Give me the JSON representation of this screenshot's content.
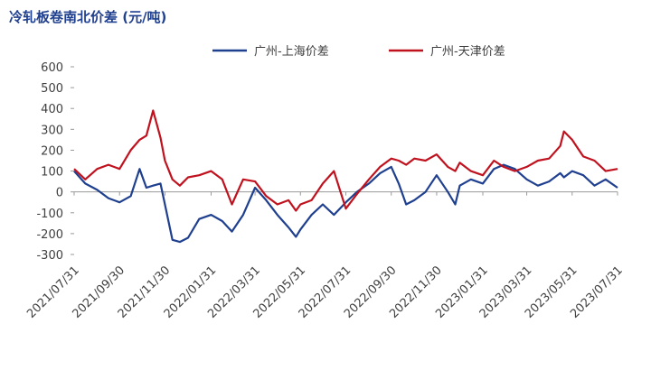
{
  "chart_data": {
    "type": "line",
    "title": "冷轧板卷南北价差 (元/吨)",
    "x": [
      "2021/07/31",
      "2021/08/15",
      "2021/08/31",
      "2021/09/15",
      "2021/09/30",
      "2021/10/15",
      "2021/10/27",
      "2021/11/05",
      "2021/11/14",
      "2021/11/24",
      "2021/11/30",
      "2021/12/10",
      "2021/12/20",
      "2021/12/31",
      "2022/01/15",
      "2022/01/31",
      "2022/02/15",
      "2022/02/28",
      "2022/03/15",
      "2022/03/31",
      "2022/04/15",
      "2022/04/30",
      "2022/05/15",
      "2022/05/25",
      "2022/05/31",
      "2022/06/15",
      "2022/06/30",
      "2022/07/15",
      "2022/07/31",
      "2022/08/15",
      "2022/08/31",
      "2022/09/15",
      "2022/09/30",
      "2022/10/10",
      "2022/10/20",
      "2022/10/31",
      "2022/11/15",
      "2022/11/30",
      "2022/12/15",
      "2022/12/25",
      "2022/12/31",
      "2023/01/15",
      "2023/01/31",
      "2023/02/15",
      "2023/02/28",
      "2023/03/15",
      "2023/03/31",
      "2023/04/15",
      "2023/04/30",
      "2023/05/15",
      "2023/05/20",
      "2023/05/31",
      "2023/06/15",
      "2023/06/30",
      "2023/07/15",
      "2023/07/31"
    ],
    "series": [
      {
        "name": "广州-上海价差",
        "color": "#1f3f8f",
        "values": [
          100,
          40,
          10,
          -30,
          -50,
          -20,
          110,
          20,
          30,
          40,
          -60,
          -230,
          -240,
          -220,
          -130,
          -110,
          -140,
          -190,
          -110,
          20,
          -40,
          -110,
          -170,
          -215,
          -180,
          -110,
          -60,
          -110,
          -50,
          0,
          40,
          90,
          120,
          40,
          -60,
          -40,
          0,
          80,
          0,
          -60,
          30,
          60,
          40,
          110,
          130,
          110,
          60,
          30,
          50,
          90,
          70,
          100,
          80,
          30,
          60,
          20
        ]
      },
      {
        "name": "广州-天津价差",
        "color": "#c0121e",
        "values": [
          110,
          60,
          110,
          130,
          110,
          200,
          250,
          270,
          390,
          260,
          150,
          60,
          30,
          70,
          80,
          100,
          60,
          -60,
          60,
          50,
          -20,
          -60,
          -40,
          -90,
          -60,
          -40,
          40,
          100,
          -80,
          -10,
          60,
          120,
          160,
          150,
          130,
          160,
          150,
          180,
          120,
          100,
          140,
          100,
          80,
          150,
          120,
          100,
          120,
          150,
          160,
          220,
          290,
          250,
          170,
          150,
          100,
          110
        ]
      }
    ],
    "xlim": [
      "2021/07/31",
      "2023/07/31"
    ],
    "xticks": [
      "2021/07/31",
      "2021/09/30",
      "2021/11/30",
      "2022/01/31",
      "2022/03/31",
      "2022/05/31",
      "2022/07/31",
      "2022/09/30",
      "2022/11/30",
      "2023/01/31",
      "2023/03/31",
      "2023/05/31",
      "2023/07/31"
    ],
    "ylim": [
      -300,
      600
    ],
    "yticks": [
      -300,
      -200,
      -100,
      0,
      100,
      200,
      300,
      400,
      500,
      600
    ]
  }
}
